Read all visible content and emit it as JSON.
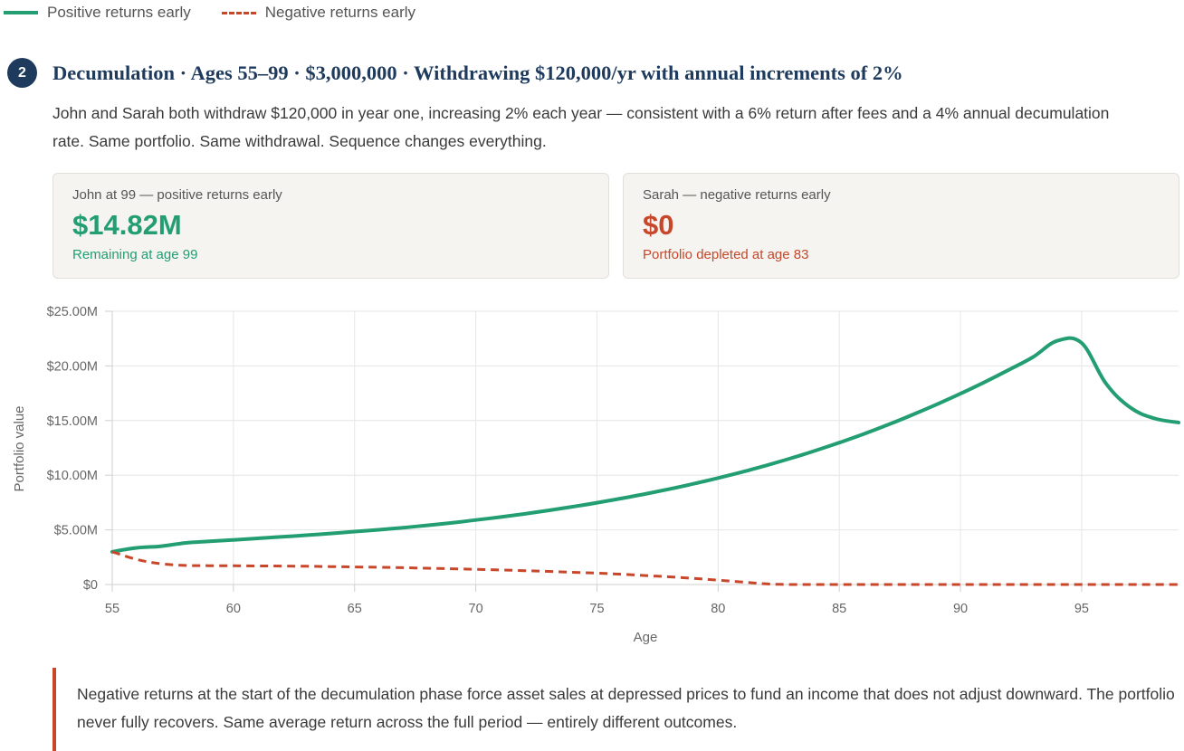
{
  "legend": {
    "positive_label": "Positive returns early",
    "negative_label": "Negative returns early"
  },
  "section": {
    "step": "2",
    "title": "Decumulation · Ages 55–99 · $3,000,000 · Withdrawing $120,000/yr with annual increments of 2%",
    "intro": "John and Sarah both withdraw $120,000 in year one, increasing 2% each year — consistent with a 6% return after fees and a 4% annual decumulation rate. Same portfolio. Same withdrawal. Sequence changes everything."
  },
  "cards": {
    "john": {
      "label": "John at 99 — positive returns early",
      "value": "$14.82M",
      "sub": "Remaining at age 99"
    },
    "sarah": {
      "label": "Sarah — negative returns early",
      "value": "$0",
      "sub": "Portfolio depleted at age 83"
    }
  },
  "colors": {
    "positive": "#229e72",
    "negative": "#c8472a",
    "accent": "#1e3a5c",
    "grid": "#e6e6e6"
  },
  "chart_data": {
    "type": "line",
    "xlabel": "Age",
    "ylabel": "Portfolio value",
    "xlim": [
      55,
      99
    ],
    "ylim": [
      0,
      25000000
    ],
    "x_ticks": [
      55,
      60,
      65,
      70,
      75,
      80,
      85,
      90,
      95
    ],
    "y_ticks": [
      0,
      5000000,
      10000000,
      15000000,
      20000000,
      25000000
    ],
    "y_tick_labels": [
      "$0",
      "$5.00M",
      "$10.00M",
      "$15.00M",
      "$20.00M",
      "$25.00M"
    ],
    "grid": true,
    "legend_position": "top-left",
    "x": [
      55,
      56,
      57,
      58,
      59,
      60,
      61,
      62,
      63,
      64,
      65,
      66,
      67,
      68,
      69,
      70,
      71,
      72,
      73,
      74,
      75,
      76,
      77,
      78,
      79,
      80,
      81,
      82,
      83,
      84,
      85,
      86,
      87,
      88,
      89,
      90,
      91,
      92,
      93,
      94,
      95,
      96,
      97,
      98,
      99
    ],
    "series": [
      {
        "name": "Positive returns early",
        "style": "solid",
        "color": "#229e72",
        "values": [
          3000000,
          3350000,
          3500000,
          3800000,
          3950000,
          4080000,
          4220000,
          4360000,
          4510000,
          4670000,
          4840000,
          5010000,
          5200000,
          5410000,
          5640000,
          5900000,
          6170000,
          6460000,
          6780000,
          7120000,
          7480000,
          7870000,
          8290000,
          8740000,
          9220000,
          9740000,
          10300000,
          10900000,
          11550000,
          12240000,
          12980000,
          13770000,
          14610000,
          15510000,
          16460000,
          17460000,
          18520000,
          19640000,
          20820000,
          22300000,
          22100000,
          18400000,
          16200000,
          15200000,
          14820000
        ]
      },
      {
        "name": "Negative returns early",
        "style": "dashed",
        "color": "#c8472a",
        "values": [
          3000000,
          2300000,
          1900000,
          1750000,
          1720000,
          1710000,
          1700000,
          1690000,
          1670000,
          1640000,
          1610000,
          1580000,
          1540000,
          1490000,
          1440000,
          1390000,
          1330000,
          1270000,
          1200000,
          1120000,
          1040000,
          940000,
          820000,
          700000,
          560000,
          400000,
          230000,
          60000,
          0,
          0,
          0,
          0,
          0,
          0,
          0,
          0,
          0,
          0,
          0,
          0,
          0,
          0,
          0,
          0,
          0
        ]
      }
    ]
  },
  "callout": {
    "text": "Negative returns at the start of the decumulation phase force asset sales at depressed prices to fund an income that does not adjust downward. The portfolio never fully recovers. Same average return across the full period — entirely different outcomes."
  }
}
